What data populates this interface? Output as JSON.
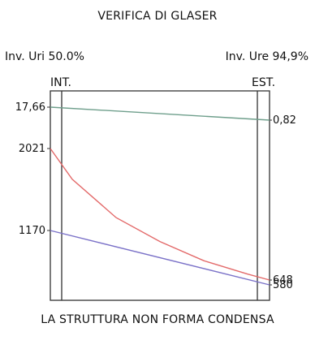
{
  "title": "VERIFICA DI GLASER",
  "left_label": "Inv. Uri 50.0%",
  "right_label": "Inv. Ure 94,9%",
  "int_label": "INT.",
  "est_label": "EST.",
  "footer": "LA STRUTTURA NON FORMA CONDENSA",
  "chart_data": {
    "type": "line",
    "x_labels": [
      "INT.",
      "EST."
    ],
    "series": [
      {
        "color": "#6f9f8c",
        "points": [
          [
            0,
            17.66
          ],
          [
            1,
            0.82
          ]
        ],
        "label_start": "17,66",
        "label_end": "0,82"
      },
      {
        "color": "#e36a6a",
        "points": [
          [
            0,
            2021
          ],
          [
            0.1,
            1700
          ],
          [
            0.3,
            1300
          ],
          [
            0.5,
            1050
          ],
          [
            0.7,
            850
          ],
          [
            0.9,
            710
          ],
          [
            1,
            648
          ]
        ],
        "label_start": "2021",
        "label_end": "648"
      },
      {
        "color": "#7b72c8",
        "points": [
          [
            0,
            1170
          ],
          [
            1,
            580
          ]
        ],
        "label_start": "1170",
        "label_end": "580"
      }
    ]
  }
}
